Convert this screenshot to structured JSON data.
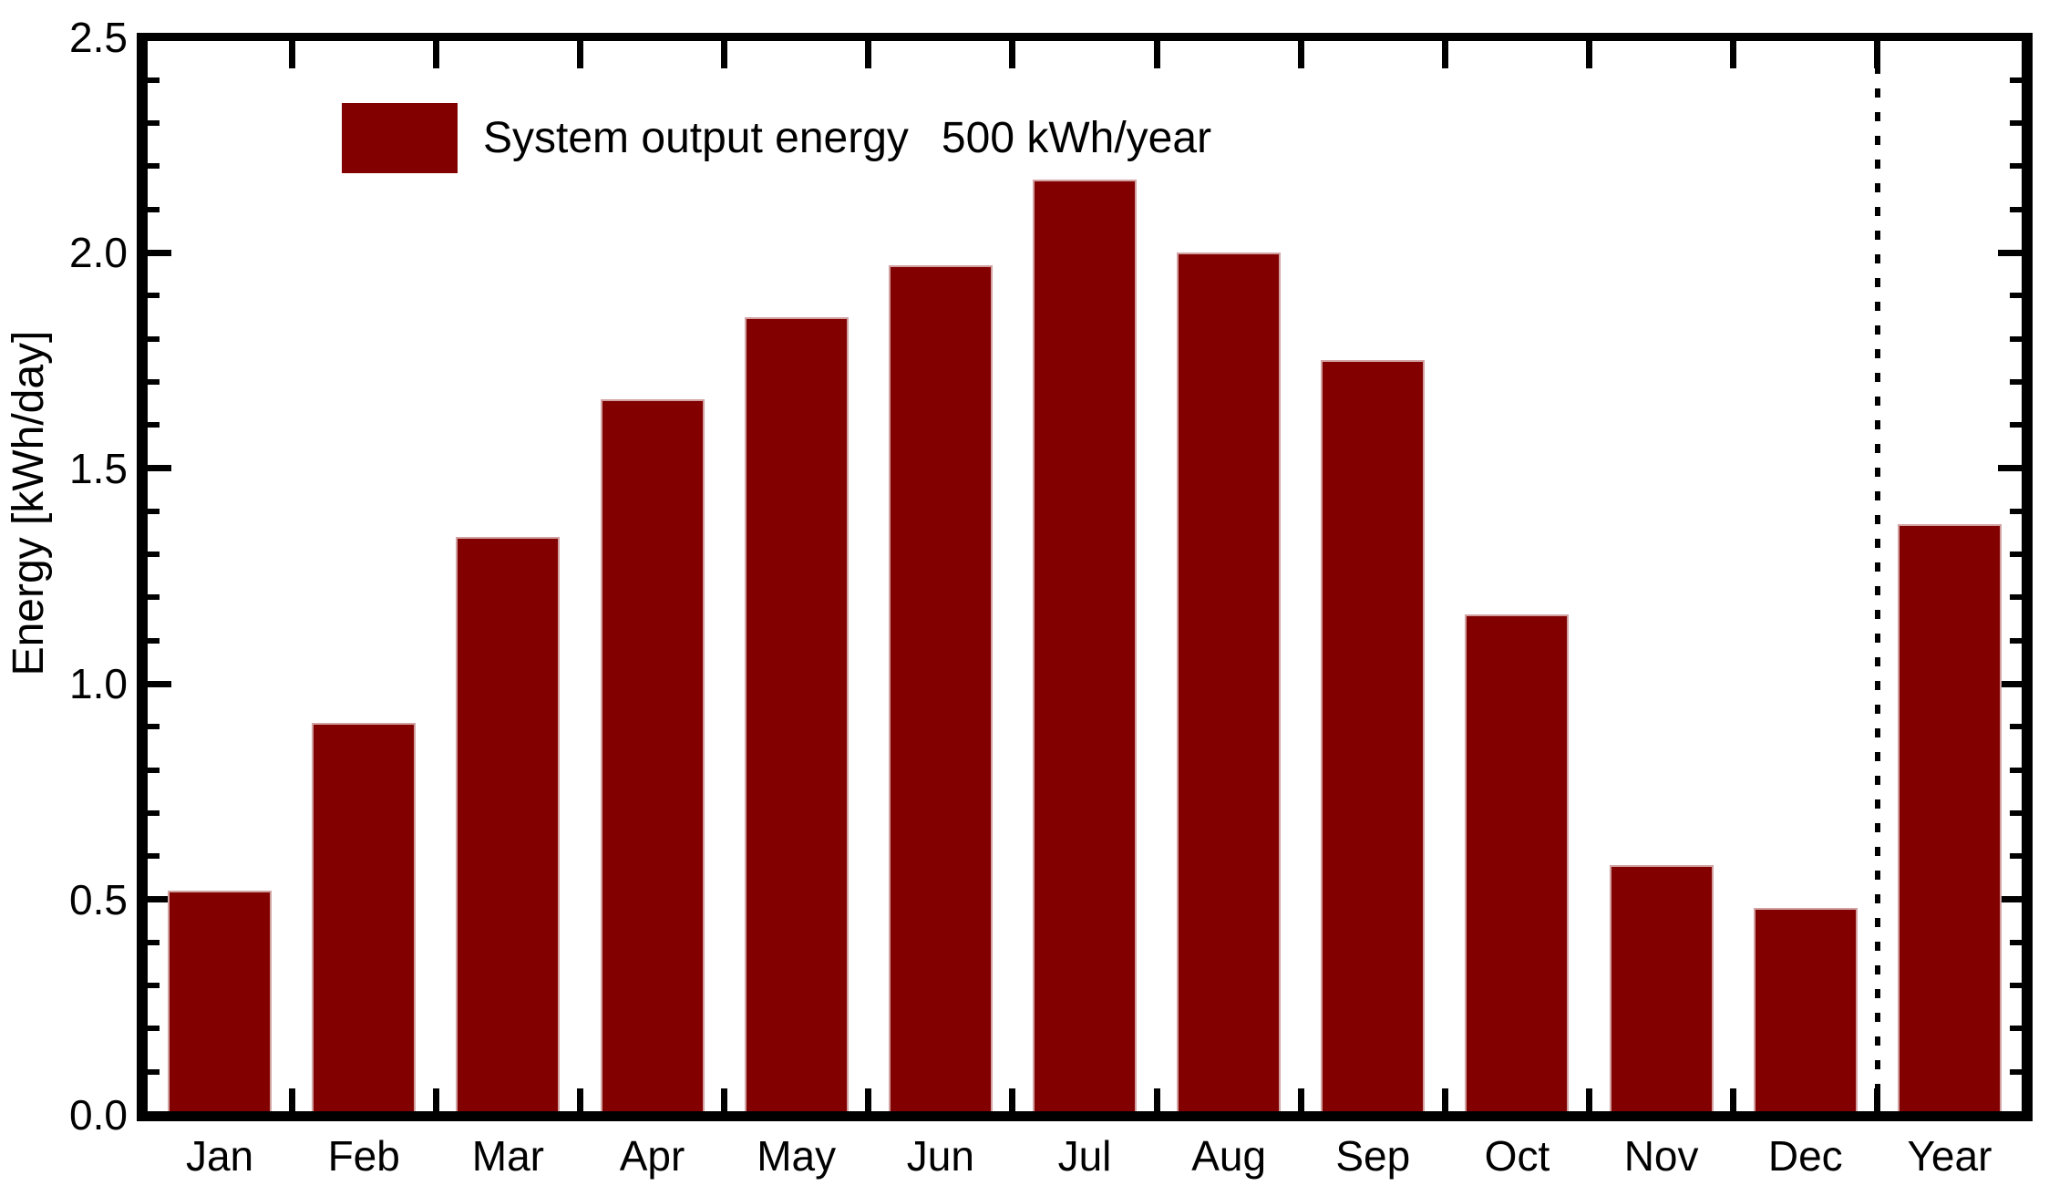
{
  "chart_data": {
    "type": "bar",
    "legend_label": "System output energy",
    "legend_value": "500 kWh/year",
    "ylabel": "Energy [kWh/day]",
    "categories": [
      "Jan",
      "Feb",
      "Mar",
      "Apr",
      "May",
      "Jun",
      "Jul",
      "Aug",
      "Sep",
      "Oct",
      "Nov",
      "Dec",
      "Year"
    ],
    "values": [
      0.52,
      0.91,
      1.34,
      1.66,
      1.85,
      1.97,
      2.17,
      2.0,
      1.75,
      1.16,
      0.58,
      0.48,
      1.37
    ],
    "ylim": [
      0.0,
      2.5
    ],
    "ytick_labels": [
      "0.0",
      "0.5",
      "1.0",
      "1.5",
      "2.0",
      "2.5"
    ],
    "ytick_step": 0.5,
    "ytick_minor_step": 0.1,
    "bar_color": "#830000",
    "bar_edge_color": "#d2a2a2",
    "axis_color": "#000000",
    "separator_before_category": "Year",
    "separator_style": "dashed",
    "legend_position": "top-left",
    "grid": false
  }
}
